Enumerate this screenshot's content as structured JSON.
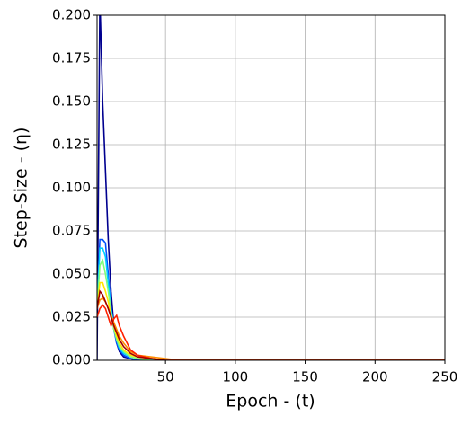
{
  "chart_data": {
    "type": "line",
    "xlabel": "Epoch - (t)",
    "ylabel": "Step-Size - (η)",
    "x": [
      1,
      3,
      5,
      7,
      9,
      11,
      13,
      15,
      17,
      20,
      25,
      30,
      40,
      50,
      60,
      100,
      150,
      200,
      250
    ],
    "series": [
      {
        "color": "#00008f",
        "values": [
          0.0,
          0.21,
          0.15,
          0.11,
          0.07,
          0.04,
          0.02,
          0.01,
          0.005,
          0.002,
          0.001,
          0.0,
          0.0,
          0.0,
          0.0,
          0.0,
          0.0,
          0.0,
          0.0
        ]
      },
      {
        "color": "#0050ff",
        "values": [
          0.03,
          0.07,
          0.07,
          0.068,
          0.05,
          0.03,
          0.018,
          0.01,
          0.006,
          0.003,
          0.001,
          0.0,
          0.0,
          0.0,
          0.0,
          0.0,
          0.0,
          0.0,
          0.0
        ]
      },
      {
        "color": "#00d0ff",
        "values": [
          0.03,
          0.065,
          0.065,
          0.06,
          0.045,
          0.03,
          0.02,
          0.012,
          0.007,
          0.004,
          0.002,
          0.001,
          0.0,
          0.0,
          0.0,
          0.0,
          0.0,
          0.0,
          0.0
        ]
      },
      {
        "color": "#7dff7a",
        "values": [
          0.03,
          0.055,
          0.058,
          0.05,
          0.04,
          0.028,
          0.018,
          0.012,
          0.008,
          0.005,
          0.002,
          0.001,
          0.0,
          0.0,
          0.0,
          0.0,
          0.0,
          0.0,
          0.0
        ]
      },
      {
        "color": "#ffe600",
        "values": [
          0.03,
          0.045,
          0.045,
          0.04,
          0.034,
          0.026,
          0.02,
          0.014,
          0.01,
          0.006,
          0.003,
          0.002,
          0.001,
          0.0,
          0.0,
          0.0,
          0.0,
          0.0,
          0.0
        ]
      },
      {
        "color": "#ff8c00",
        "values": [
          0.03,
          0.035,
          0.036,
          0.034,
          0.03,
          0.026,
          0.022,
          0.018,
          0.014,
          0.01,
          0.005,
          0.003,
          0.002,
          0.001,
          0.0,
          0.0,
          0.0,
          0.0,
          0.0
        ]
      },
      {
        "color": "#ff2000",
        "values": [
          0.025,
          0.03,
          0.032,
          0.03,
          0.025,
          0.02,
          0.024,
          0.026,
          0.02,
          0.014,
          0.006,
          0.003,
          0.001,
          0.0,
          0.0,
          0.0,
          0.0,
          0.0,
          0.0
        ]
      },
      {
        "color": "#a00000",
        "values": [
          0.03,
          0.04,
          0.038,
          0.034,
          0.03,
          0.025,
          0.02,
          0.016,
          0.012,
          0.008,
          0.004,
          0.002,
          0.001,
          0.0,
          0.0,
          0.0,
          0.0,
          0.0,
          0.0
        ]
      }
    ],
    "xlim": [
      1,
      250
    ],
    "xticks": [
      50,
      100,
      150,
      200,
      250
    ],
    "ylim": [
      0,
      0.2
    ],
    "yticks": [
      {
        "value": 0,
        "label": "0.000"
      },
      {
        "value": 0.025,
        "label": "0.025"
      },
      {
        "value": 0.05,
        "label": "0.050"
      },
      {
        "value": 0.075,
        "label": "0.075"
      },
      {
        "value": 0.1,
        "label": "0.100"
      },
      {
        "value": 0.125,
        "label": "0.125"
      },
      {
        "value": 0.15,
        "label": "0.150"
      },
      {
        "value": 0.175,
        "label": "0.175"
      },
      {
        "value": 0.2,
        "label": "0.200"
      }
    ],
    "grid": true
  }
}
